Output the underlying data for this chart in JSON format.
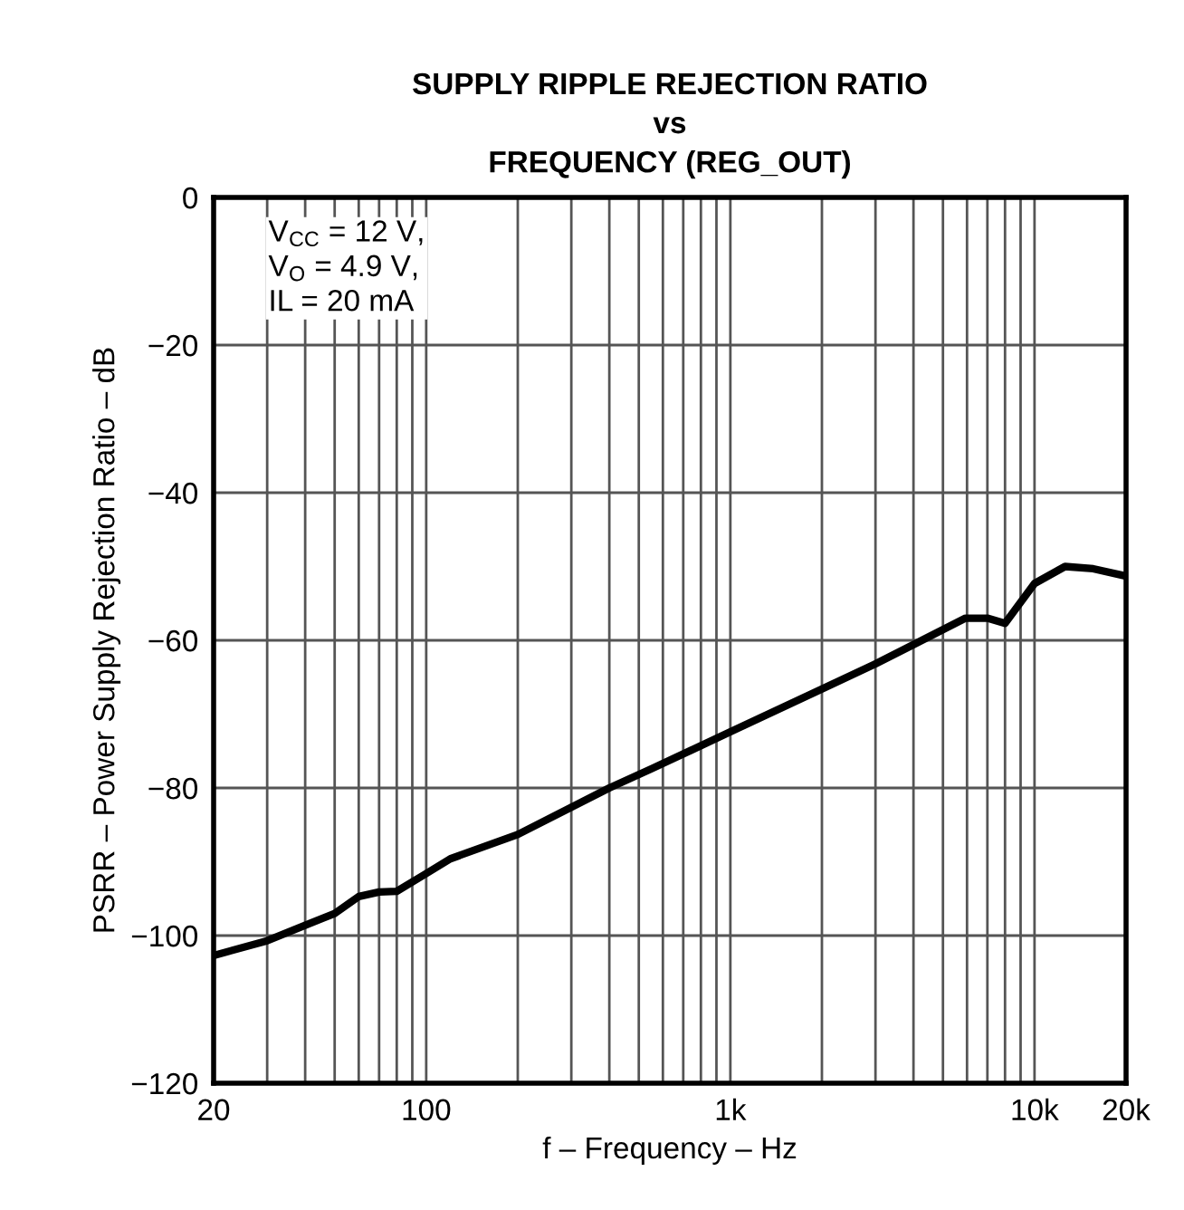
{
  "chart_data": {
    "type": "line",
    "title": "SUPPLY RIPPLE REJECTION RATIO\nvs\nFREQUENCY (REG_OUT)",
    "xlabel": "f – Frequency – Hz",
    "ylabel": "PSRR – Power Supply Rejection Ratio – dB",
    "annotations": [
      "V$_{CC}$ = 12 V,\nV$_{O}$ = 4.9 V,\nIL = 20 mA"
    ],
    "log": "x",
    "grid": true,
    "marker": "none",
    "line_style": "solid",
    "xlim": [
      20,
      20000
    ],
    "xticks": [
      20,
      100,
      {
        "value": 1000,
        "label": "1k"
      },
      {
        "value": 10000,
        "label": "10k"
      },
      {
        "value": 20000,
        "label": "20k"
      }
    ],
    "ylim": [
      -120,
      0
    ],
    "yticks": [
      {
        "value": -120,
        "label": "−120"
      },
      {
        "value": -100,
        "label": "−100"
      },
      {
        "value": -80,
        "label": "−80"
      },
      {
        "value": -60,
        "label": "−60"
      },
      {
        "value": -40,
        "label": "−40"
      },
      {
        "value": -20,
        "label": "−20"
      },
      0
    ],
    "series": [
      {
        "color": "#000000",
        "x": [
          20,
          30,
          40,
          50,
          60,
          70,
          80,
          100,
          120,
          200,
          400,
          551,
          1000,
          3000,
          5930,
          7000,
          8000,
          10000,
          12600,
          15600,
          20000
        ],
        "values": [
          -102.7,
          -100.7,
          -98.6,
          -97,
          -94.7,
          -94.1,
          -94,
          -91.6,
          -89.6,
          -86.3,
          -80,
          -77.4,
          -72.4,
          -63.2,
          -57,
          -57,
          -57.7,
          -52.3,
          -50,
          -50.3,
          -51.3
        ]
      }
    ]
  }
}
